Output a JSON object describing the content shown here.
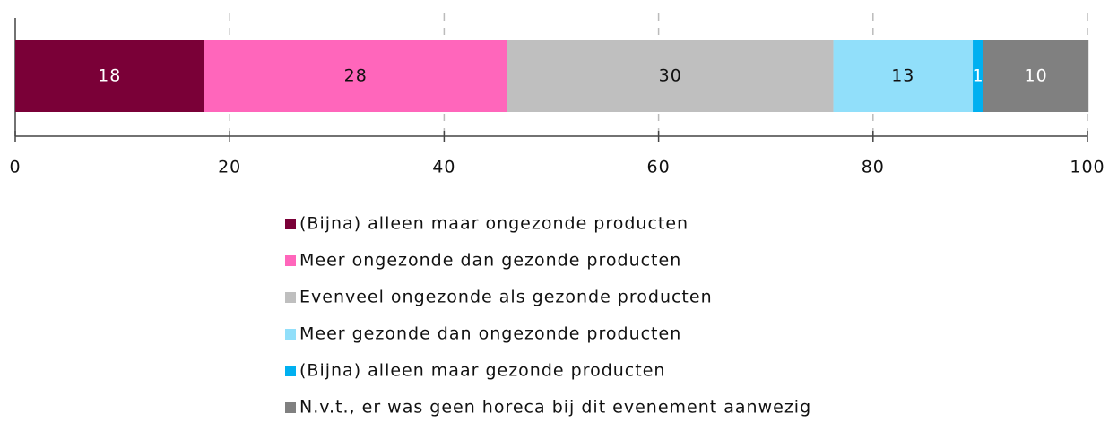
{
  "chart_data": {
    "type": "bar",
    "orientation": "horizontal",
    "stacked": true,
    "categories": [
      null
    ],
    "series": [
      {
        "name": "(Bijna) alleen maar ongezonde producten",
        "color": "#7a0037",
        "values": [
          17.6
        ],
        "value_labels": [
          "18"
        ]
      },
      {
        "name": "Meer ongezonde dan gezonde producten",
        "color": "#ff66bb",
        "values": [
          28.3
        ],
        "value_labels": [
          "28"
        ]
      },
      {
        "name": "Evenveel ongezonde als gezonde producten",
        "color": "#bfbfbf",
        "values": [
          30.4
        ],
        "value_labels": [
          "30"
        ]
      },
      {
        "name": "Meer gezonde dan ongezonde producten",
        "color": "#91dffa",
        "values": [
          13
        ],
        "value_labels": [
          "13"
        ]
      },
      {
        "name": "(Bijna) alleen maar gezonde producten",
        "color": "#00b0f0",
        "values": [
          1
        ],
        "value_labels": [
          "1"
        ]
      },
      {
        "name": "N.v.t., er was geen horeca bij dit evenement aanwezig",
        "color": "#808080",
        "values": [
          9.8
        ],
        "value_labels": [
          "10"
        ]
      }
    ],
    "xlim": [
      0,
      100
    ],
    "xticks": [
      0,
      20,
      40,
      60,
      80,
      100
    ],
    "grid": true,
    "legend": "bottom"
  }
}
